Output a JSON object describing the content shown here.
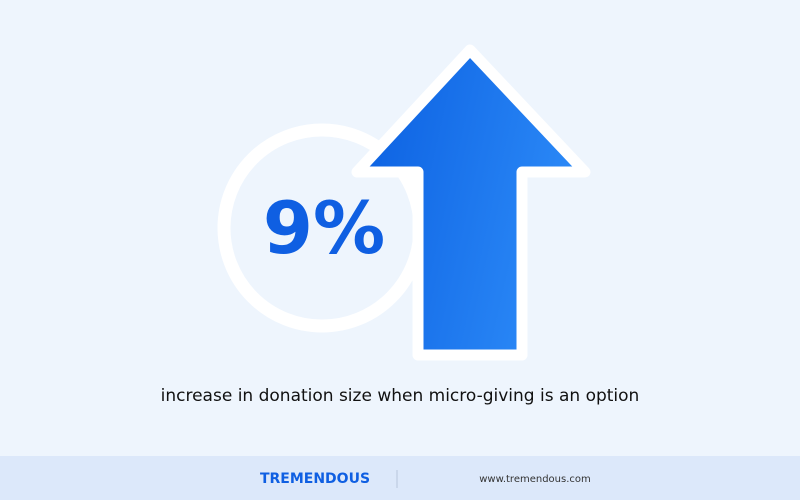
{
  "stat": {
    "value": "9%",
    "caption": "increase in donation size when micro-giving is an option"
  },
  "footer": {
    "brand": "TREMENDOUS",
    "url": "www.tremendous.com"
  }
}
